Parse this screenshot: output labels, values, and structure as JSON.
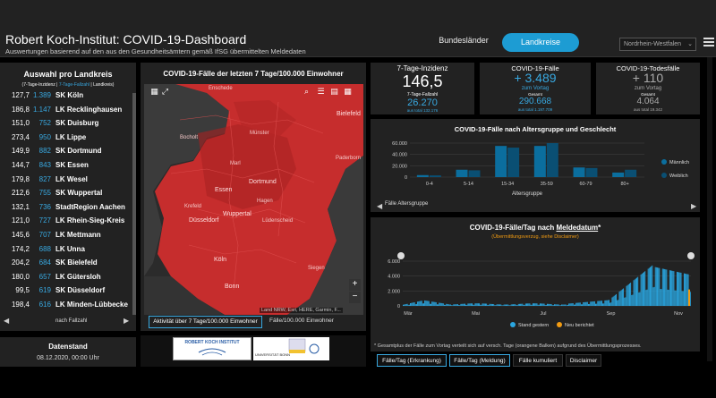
{
  "header": {
    "title": "Robert Koch-Institut: COVID-19-Dashboard",
    "subtitle": "Auswertungen basierend auf den aus den Gesundheitsämtern gemäß IfSG übermittelten Meldedaten",
    "tabs": [
      "Bundesländer",
      "Landkreise"
    ],
    "region_select": "Nordrhein-Westfalen"
  },
  "left_panel": {
    "title": "Auswahl pro Landkreis",
    "subtitle_a": "(7-Tage-Inzidenz | ",
    "subtitle_b": "7-Tage-Fallzahl",
    "subtitle_c": " | Landkreis)",
    "rows": [
      {
        "inz": "127,7",
        "num": "1.389",
        "name": "SK Köln"
      },
      {
        "inz": "186,8",
        "num": "1.147",
        "name": "LK Recklinghausen"
      },
      {
        "inz": "151,0",
        "num": "752",
        "name": "SK Duisburg"
      },
      {
        "inz": "273,4",
        "num": "950",
        "name": "LK Lippe"
      },
      {
        "inz": "149,9",
        "num": "882",
        "name": "SK Dortmund"
      },
      {
        "inz": "144,7",
        "num": "843",
        "name": "SK Essen"
      },
      {
        "inz": "179,8",
        "num": "827",
        "name": "LK Wesel"
      },
      {
        "inz": "212,6",
        "num": "755",
        "name": "SK Wuppertal"
      },
      {
        "inz": "132,1",
        "num": "736",
        "name": "StadtRegion Aachen"
      },
      {
        "inz": "121,0",
        "num": "727",
        "name": "LK Rhein-Sieg-Kreis"
      },
      {
        "inz": "145,6",
        "num": "707",
        "name": "LK Mettmann"
      },
      {
        "inz": "174,2",
        "num": "688",
        "name": "LK Unna"
      },
      {
        "inz": "204,2",
        "num": "684",
        "name": "SK Bielefeld"
      },
      {
        "inz": "180,0",
        "num": "657",
        "name": "LK Gütersloh"
      },
      {
        "inz": "99,5",
        "num": "619",
        "name": "SK Düsseldorf"
      },
      {
        "inz": "198,4",
        "num": "616",
        "name": "LK Minden-Lübbecke"
      }
    ],
    "sort_label": "nach Fallzahl",
    "date_title": "Datenstand",
    "date_value": "08.12.2020, 00:00 Uhr"
  },
  "map": {
    "title": "COVID-19-Fälle der letzten 7 Tage/100.000 Einwohner",
    "labels": {
      "enschede": "Enschede",
      "bielefeld": "Bielefeld",
      "bocholt": "Bocholt",
      "muenster": "Münster",
      "paderborn": "Paderborn",
      "essen": "Essen",
      "dortmund": "Dortmund",
      "duesseldorf": "Düsseldorf",
      "wuppertal": "Wuppertal",
      "hagen": "Hagen",
      "krefeld": "Krefeld",
      "koeln": "Köln",
      "bonn": "Bonn",
      "siegen": "Siegen",
      "marl": "Marl",
      "luedenscheid": "Lüdenscheid"
    },
    "attribution": "Land NRW, Esri, HERE, Garmin, F...",
    "tab1": "Aktivität über 7 Tage/100.000 Einwohner",
    "tab2": "Fälle/100.000 Einwohner"
  },
  "logos": {
    "rki": "ROBERT KOCH INSTITUT",
    "uni": "UNIVERSITÄT BONN"
  },
  "kpis": {
    "incidence": {
      "title": "7-Tage-Inzidenz",
      "value": "146,5",
      "sub_label": "7-Tage-Fallzahl",
      "sub_value": "26.270",
      "total": "aus total 132.176"
    },
    "cases": {
      "title": "COVID-19-Fälle",
      "delta": "+ 3.489",
      "delta_label": "zum Vortag",
      "total_label": "Gesamt",
      "total": "290.668",
      "total_note": "aus total 1.197.709"
    },
    "deaths": {
      "title": "COVID-19-Todesfälle",
      "delta": "+ 110",
      "delta_label": "zum Vortag",
      "total_label": "Gesamt",
      "total": "4.064",
      "total_note": "aus total 19.342"
    }
  },
  "chart_data": [
    {
      "type": "bar",
      "title": "COVID-19-Fälle nach Altersgruppe und Geschlecht",
      "xlabel": "Altersgruppe",
      "categories": [
        "0-4",
        "5-14",
        "15-34",
        "35-59",
        "60-79",
        "80+"
      ],
      "ylim": [
        0,
        60000
      ],
      "yticks": [
        "0",
        "20.000",
        "40.000",
        "60.000"
      ],
      "series": [
        {
          "name": "Männlich",
          "values": [
            3500,
            13000,
            55000,
            55000,
            17000,
            8000
          ]
        },
        {
          "name": "Weiblich",
          "values": [
            3000,
            12000,
            52000,
            60000,
            16000,
            13000
          ]
        }
      ],
      "legend": "right",
      "footer": "Fälle Altersgruppe"
    },
    {
      "type": "bar",
      "title": "COVID-19-Fälle/Tag nach ",
      "title_link": "Meldedatum",
      "title_suffix": "*",
      "subtitle": "(Übermittlungsverzug, siehe Disclaimer)",
      "categories": [
        "Mär",
        "Mai",
        "Jul",
        "Sep",
        "Nov"
      ],
      "ylim": [
        0,
        6000
      ],
      "yticks": [
        "0",
        "2.000",
        "4.000",
        "6.000"
      ],
      "series": [
        {
          "name": "Stand gestern"
        },
        {
          "name": "Neu berichtet"
        }
      ],
      "legend": "bottom"
    }
  ],
  "footnote": "* Gesamtplus der Fälle zum Vortag verteilt sich auf versch. Tage (orangene Balken) aufgrund des Übermittlungsprozesses.",
  "bottom_tabs": [
    "Fälle/Tag (Erkrankung)",
    "Fälle/Tag (Meldung)",
    "Fälle kumuliert",
    "Disclaimer"
  ],
  "colors": {
    "accent": "#1d9cd3",
    "bar_m": "#0b6e9e",
    "bar_w": "#0a4f73",
    "map_red": "#c62d2d",
    "orange": "#f39c12"
  }
}
